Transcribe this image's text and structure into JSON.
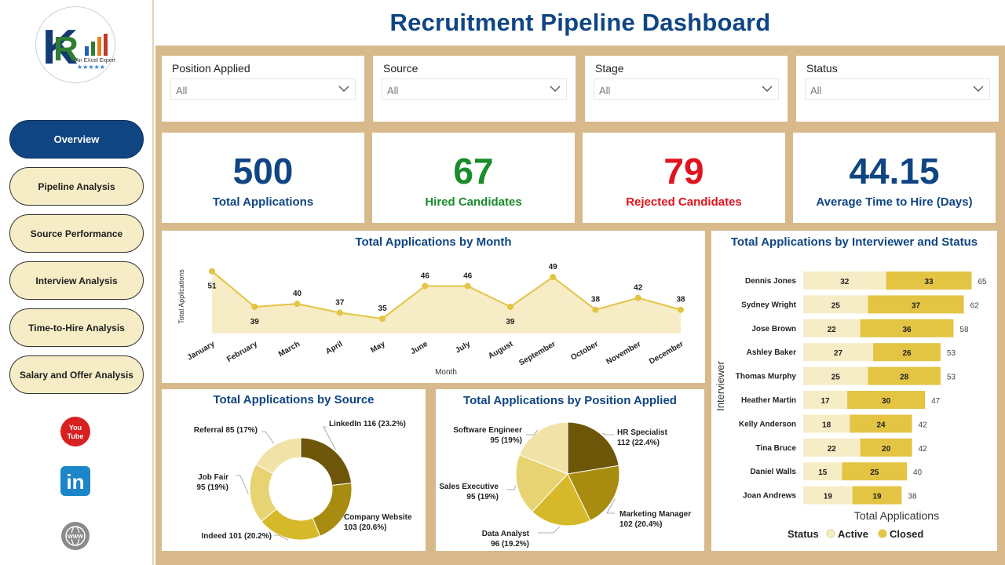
{
  "header": {
    "title": "Recruitment Pipeline Dashboard"
  },
  "logo": {
    "text": "An EXcel Expert"
  },
  "nav": [
    {
      "label": "Overview",
      "active": true
    },
    {
      "label": "Pipeline Analysis",
      "active": false
    },
    {
      "label": "Source Performance",
      "active": false
    },
    {
      "label": "Interview Analysis",
      "active": false
    },
    {
      "label": "Time-to-Hire Analysis",
      "active": false
    },
    {
      "label": "Salary and Offer Analysis",
      "active": false
    }
  ],
  "social": {
    "youtube": "You Tube",
    "linkedin": "in",
    "web": "WWW"
  },
  "filters": [
    {
      "label": "Position Applied",
      "value": "All"
    },
    {
      "label": "Source",
      "value": "All"
    },
    {
      "label": "Stage",
      "value": "All"
    },
    {
      "label": "Status",
      "value": "All"
    }
  ],
  "kpis": [
    {
      "value": "500",
      "label": "Total Applications",
      "color": "#0f4583"
    },
    {
      "value": "67",
      "label": "Hired Candidates",
      "color": "#1a8c2b"
    },
    {
      "value": "79",
      "label": "Rejected Candidates",
      "color": "#e0141e"
    },
    {
      "value": "44.15",
      "label": "Average Time to Hire (Days)",
      "color": "#0f4583"
    }
  ],
  "colors": {
    "navy": "#0f4583",
    "tan": "#d7b98b",
    "gold": "#e3c443",
    "lightGold": "#f6ecc6"
  },
  "chart_data": [
    {
      "type": "area",
      "title": "Total Applications by Month",
      "xlabel": "Month",
      "ylabel": "Total Applications",
      "categories": [
        "January",
        "February",
        "March",
        "April",
        "May",
        "June",
        "July",
        "August",
        "September",
        "October",
        "November",
        "December"
      ],
      "values": [
        51,
        39,
        40,
        37,
        35,
        46,
        46,
        39,
        49,
        38,
        42,
        38
      ],
      "ylim": [
        30,
        53
      ]
    },
    {
      "type": "pie",
      "title": "Total Applications by Source",
      "donut": true,
      "slices": [
        {
          "label": "LinkedIn 116 (23.2%)",
          "value": 116,
          "color": "#6e5609"
        },
        {
          "label": "Company Website\n103 (20.6%)",
          "value": 103,
          "color": "#a88c0f"
        },
        {
          "label": "Indeed 101 (20.2%)",
          "value": 101,
          "color": "#d6b92a"
        },
        {
          "label": "Job Fair\n95 (19%)",
          "value": 95,
          "color": "#e8d372"
        },
        {
          "label": "Referral 85 (17%)",
          "value": 85,
          "color": "#f1e3a7"
        }
      ]
    },
    {
      "type": "pie",
      "title": "Total Applications by Position Applied",
      "donut": false,
      "slices": [
        {
          "label": "HR Specialist\n112 (22.4%)",
          "value": 112,
          "color": "#6e5609"
        },
        {
          "label": "Marketing Manager\n102 (20.4%)",
          "value": 102,
          "color": "#a88c0f"
        },
        {
          "label": "Data Analyst\n96 (19.2%)",
          "value": 96,
          "color": "#d6b92a"
        },
        {
          "label": "Sales Executive\n95 (19%)",
          "value": 95,
          "color": "#e8d372"
        },
        {
          "label": "Software Engineer\n95 (19%)",
          "value": 95,
          "color": "#f1e3a7"
        }
      ]
    },
    {
      "type": "bar",
      "orientation": "horizontal",
      "stacked": true,
      "title": "Total Applications by Interviewer and Status",
      "xlabel": "Total Applications",
      "ylabel": "Interviewer",
      "legend_title": "Status",
      "categories": [
        "Dennis Jones",
        "Sydney Wright",
        "Jose Brown",
        "Ashley Baker",
        "Thomas Murphy",
        "Heather Martin",
        "Kelly Anderson",
        "Tina Bruce",
        "Daniel Walls",
        "Joan Andrews"
      ],
      "series": [
        {
          "name": "Active",
          "values": [
            32,
            25,
            22,
            27,
            25,
            17,
            18,
            22,
            15,
            19
          ],
          "color": "#f6ecc6"
        },
        {
          "name": "Closed",
          "values": [
            33,
            37,
            36,
            26,
            28,
            30,
            24,
            20,
            25,
            19
          ],
          "color": "#e3c443"
        }
      ],
      "totals": [
        65,
        62,
        58,
        53,
        53,
        47,
        42,
        42,
        40,
        38
      ]
    }
  ]
}
